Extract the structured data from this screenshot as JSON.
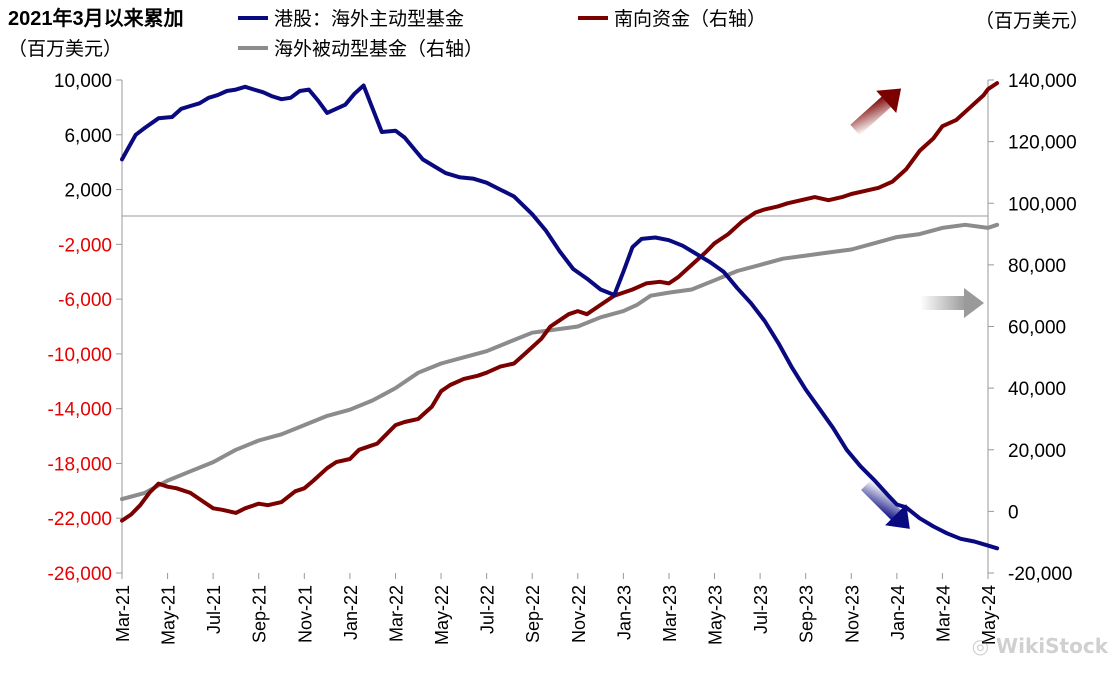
{
  "chart_data": {
    "type": "line",
    "title": "2021年3月以来累加",
    "left_unit": "（百万美元）",
    "right_unit": "（百万美元）",
    "colors": {
      "active": "#0a0a80",
      "southbound": "#7b0000",
      "passive": "#8c8c8c",
      "negative_tick": "#e60000",
      "positive_tick": "#000000",
      "axis": "#999999"
    },
    "x_ticks": [
      "Mar-21",
      "May-21",
      "Jul-21",
      "Sep-21",
      "Nov-21",
      "Jan-22",
      "Mar-22",
      "May-22",
      "Jul-22",
      "Sep-22",
      "Nov-22",
      "Jan-23",
      "Mar-23",
      "May-23",
      "Jul-23",
      "Sep-23",
      "Nov-23",
      "Jan-24",
      "Mar-24",
      "May-24"
    ],
    "left_axis": {
      "min": -26000,
      "max": 10000,
      "ticks": [
        10000,
        6000,
        2000,
        -2000,
        -6000,
        -10000,
        -14000,
        -18000,
        -22000,
        -26000
      ],
      "tick_labels": [
        "10,000",
        "6,000",
        "2,000",
        "-2,000",
        "-6,000",
        "-10,000",
        "-14,000",
        "-18,000",
        "-22,000",
        "-26,000"
      ]
    },
    "right_axis": {
      "min": -20000,
      "max": 140000,
      "ticks": [
        140000,
        120000,
        100000,
        80000,
        60000,
        40000,
        20000,
        0,
        -20000
      ],
      "tick_labels": [
        "140,000",
        "120,000",
        "100,000",
        "80,000",
        "60,000",
        "40,000",
        "20,000",
        "0",
        "-20,000"
      ]
    },
    "series": [
      {
        "name": "港股：海外主动型基金",
        "axis": "left",
        "x": [
          0,
          0.3,
          0.5,
          0.8,
          1.1,
          1.3,
          1.5,
          1.7,
          1.9,
          2.1,
          2.3,
          2.5,
          2.7,
          2.9,
          3.1,
          3.3,
          3.5,
          3.7,
          3.9,
          4.1,
          4.3,
          4.5,
          4.7,
          4.9,
          5.1,
          5.3,
          5.5,
          5.7,
          6,
          6.2,
          6.4,
          6.6,
          6.9,
          7.1,
          7.4,
          7.7,
          8,
          8.3,
          8.6,
          9,
          9.3,
          9.6,
          9.9,
          10.2,
          10.5,
          10.8,
          11,
          11.2,
          11.4,
          11.7,
          12,
          12.3,
          12.6,
          12.9,
          13.2,
          13.5,
          13.8,
          14.1,
          14.4,
          14.7,
          15,
          15.3,
          15.6,
          15.9,
          16.2,
          16.5,
          16.8,
          17,
          17.2,
          17.5,
          17.8,
          18.1,
          18.4,
          18.7,
          19,
          19.2
        ],
        "values": [
          4200,
          6000,
          6500,
          7200,
          7300,
          7900,
          8100,
          8300,
          8700,
          8900,
          9200,
          9300,
          9500,
          9300,
          9100,
          8800,
          8600,
          8700,
          9200,
          9300,
          8500,
          7600,
          7900,
          8200,
          9000,
          9600,
          7900,
          6200,
          6300,
          5800,
          5000,
          4200,
          3600,
          3200,
          2900,
          2800,
          2500,
          2000,
          1500,
          200,
          -1000,
          -2500,
          -3800,
          -4500,
          -5300,
          -5700,
          -4000,
          -2200,
          -1600,
          -1500,
          -1700,
          -2100,
          -2700,
          -3300,
          -4000,
          -5200,
          -6300,
          -7600,
          -9200,
          -11000,
          -12600,
          -14000,
          -15400,
          -17000,
          -18200,
          -19200,
          -20300,
          -21000,
          -21200,
          -22000,
          -22600,
          -23100,
          -23500,
          -23700,
          -24000,
          -24200
        ]
      },
      {
        "name": "南向资金（右轴）",
        "axis": "right",
        "x": [
          0,
          0.2,
          0.4,
          0.6,
          0.8,
          1.0,
          1.2,
          1.5,
          1.8,
          2.0,
          2.2,
          2.5,
          2.7,
          3.0,
          3.2,
          3.5,
          3.8,
          4.0,
          4.2,
          4.5,
          4.7,
          5.0,
          5.2,
          5.4,
          5.6,
          5.8,
          6.0,
          6.2,
          6.5,
          6.8,
          7.0,
          7.2,
          7.5,
          7.8,
          8.0,
          8.3,
          8.6,
          8.9,
          9.2,
          9.4,
          9.6,
          9.8,
          10.0,
          10.2,
          10.5,
          10.8,
          11.0,
          11.2,
          11.5,
          11.8,
          12.0,
          12.2,
          12.5,
          12.8,
          13.0,
          13.3,
          13.6,
          13.9,
          14.1,
          14.4,
          14.6,
          14.9,
          15.2,
          15.5,
          15.8,
          16.0,
          16.3,
          16.6,
          16.9,
          17.2,
          17.5,
          17.8,
          18.0,
          18.3,
          18.6,
          18.9,
          19.0,
          19.2
        ],
        "values": [
          -3000,
          -1000,
          2000,
          6000,
          9000,
          8000,
          7500,
          6000,
          3000,
          1000,
          500,
          -500,
          1000,
          2500,
          2000,
          3000,
          6500,
          7500,
          10000,
          14000,
          16000,
          17000,
          20000,
          21000,
          22000,
          25000,
          28000,
          29000,
          30000,
          34000,
          39000,
          41000,
          43000,
          44000,
          45000,
          47000,
          48000,
          52000,
          56000,
          60000,
          62000,
          64000,
          65000,
          64000,
          67000,
          70000,
          71000,
          72000,
          74000,
          74500,
          74000,
          76000,
          80000,
          84000,
          87000,
          90000,
          94000,
          97000,
          98000,
          99000,
          100000,
          101000,
          102000,
          101000,
          102000,
          103000,
          104000,
          105000,
          107000,
          111000,
          117000,
          121000,
          125000,
          127000,
          131000,
          135000,
          137000,
          139000
        ]
      },
      {
        "name": "海外被动型基金（右轴）",
        "axis": "right",
        "x": [
          0,
          0.5,
          1.0,
          1.5,
          2.0,
          2.5,
          3.0,
          3.5,
          4.0,
          4.5,
          5.0,
          5.5,
          6.0,
          6.5,
          7.0,
          7.5,
          8.0,
          8.5,
          9.0,
          9.5,
          10.0,
          10.5,
          11.0,
          11.3,
          11.6,
          12.0,
          12.5,
          13.0,
          13.5,
          14.0,
          14.5,
          15.0,
          15.5,
          16.0,
          16.5,
          17.0,
          17.5,
          18.0,
          18.5,
          19.0,
          19.2
        ],
        "values": [
          4000,
          6000,
          10000,
          13000,
          16000,
          20000,
          23000,
          25000,
          28000,
          31000,
          33000,
          36000,
          40000,
          45000,
          48000,
          50000,
          52000,
          55000,
          58000,
          59000,
          60000,
          63000,
          65000,
          67000,
          70000,
          71000,
          72000,
          75000,
          78000,
          80000,
          82000,
          83000,
          84000,
          85000,
          87000,
          89000,
          90000,
          92000,
          93000,
          92000,
          93000
        ]
      }
    ]
  }
}
